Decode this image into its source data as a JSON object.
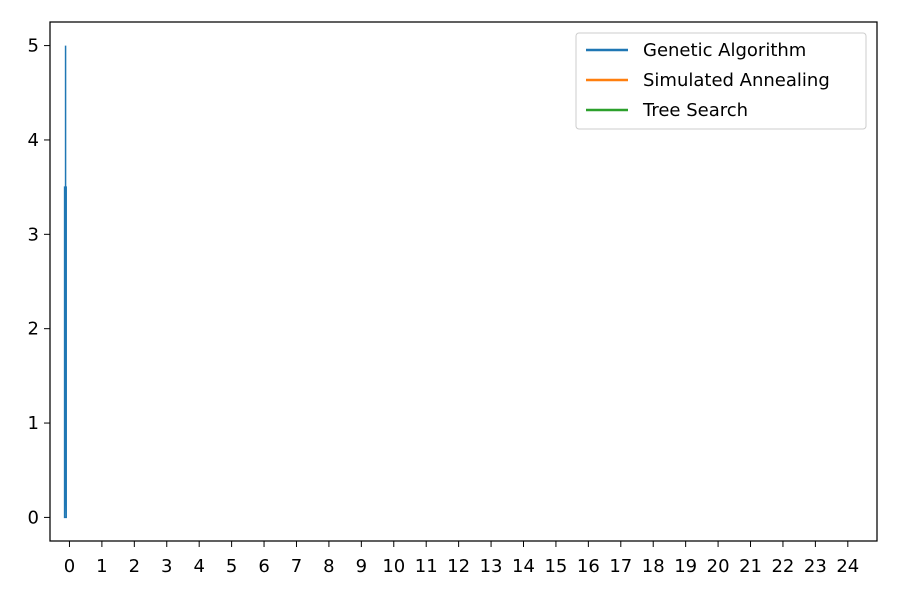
{
  "chart_data": {
    "type": "line",
    "title": "",
    "xlabel": "",
    "ylabel": "",
    "x_ticks": [
      "0",
      "1",
      "2",
      "3",
      "4",
      "5",
      "6",
      "7",
      "8",
      "9",
      "10",
      "11",
      "12",
      "13",
      "14",
      "15",
      "16",
      "17",
      "18",
      "19",
      "20",
      "21",
      "22",
      "23",
      "24"
    ],
    "y_ticks": [
      0,
      1,
      2,
      3,
      4,
      5
    ],
    "xlim": [
      -0.6,
      24.9
    ],
    "ylim": [
      -0.25,
      5.25
    ],
    "grid": false,
    "legend_position": "top-right",
    "series": [
      {
        "name": "Genetic Algorithm",
        "color": "#1f77b4",
        "drawstyle": "steps",
        "points": [
          {
            "x": -0.15,
            "y": 0.0
          },
          {
            "x": -0.15,
            "y": 3.5
          },
          {
            "x": -0.1,
            "y": 3.5
          },
          {
            "x": -0.1,
            "y": 0.0
          },
          {
            "x": -0.15,
            "y": 0.0
          },
          {
            "x": -0.12,
            "y": 1.0
          },
          {
            "x": -0.12,
            "y": 5.0
          }
        ]
      },
      {
        "name": "Simulated Annealing",
        "color": "#ff7f0e",
        "drawstyle": "steps",
        "points": []
      },
      {
        "name": "Tree Search",
        "color": "#2ca02c",
        "drawstyle": "steps",
        "points": []
      }
    ]
  }
}
